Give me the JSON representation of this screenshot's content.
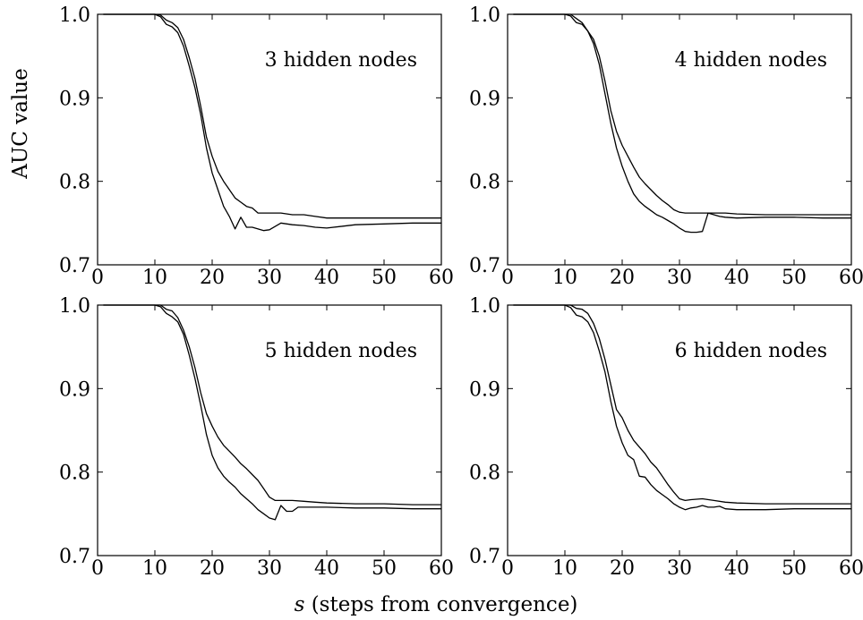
{
  "figure": {
    "ylabel": "AUC value",
    "xlabel_var": "s",
    "xlabel_rest": " (steps from convergence)"
  },
  "chart_data": [
    {
      "type": "line",
      "title": "3 hidden nodes",
      "xlim": [
        0,
        60
      ],
      "ylim": [
        0.7,
        1.0
      ],
      "xticks": [
        0,
        10,
        20,
        30,
        40,
        50,
        60
      ],
      "yticks": [
        0.7,
        0.8,
        0.9,
        1.0
      ],
      "series": [
        {
          "x": [
            1,
            9,
            10,
            11,
            12,
            13,
            14,
            15,
            16,
            17,
            18,
            19,
            20,
            21,
            22,
            23,
            24,
            25,
            26,
            27,
            28,
            29,
            30,
            32,
            34,
            36,
            38,
            40,
            45,
            50,
            55,
            60
          ],
          "y": [
            1.0,
            1.0,
            1.0,
            0.999,
            0.993,
            0.99,
            0.984,
            0.97,
            0.948,
            0.923,
            0.89,
            0.853,
            0.83,
            0.812,
            0.8,
            0.79,
            0.78,
            0.775,
            0.77,
            0.768,
            0.762,
            0.762,
            0.762,
            0.762,
            0.76,
            0.76,
            0.758,
            0.756,
            0.756,
            0.756,
            0.756,
            0.756
          ]
        },
        {
          "x": [
            1,
            9,
            10,
            11,
            12,
            13,
            14,
            15,
            16,
            17,
            18,
            19,
            20,
            21,
            22,
            23,
            24,
            25,
            26,
            27,
            28,
            29,
            30,
            32,
            34,
            36,
            38,
            40,
            45,
            50,
            55,
            60
          ],
          "y": [
            1.0,
            1.0,
            1.0,
            0.997,
            0.988,
            0.985,
            0.978,
            0.962,
            0.938,
            0.912,
            0.88,
            0.84,
            0.81,
            0.79,
            0.77,
            0.758,
            0.743,
            0.757,
            0.745,
            0.745,
            0.743,
            0.741,
            0.742,
            0.75,
            0.748,
            0.747,
            0.745,
            0.744,
            0.748,
            0.749,
            0.75,
            0.75
          ]
        }
      ]
    },
    {
      "type": "line",
      "title": "4 hidden nodes",
      "xlim": [
        0,
        60
      ],
      "ylim": [
        0.7,
        1.0
      ],
      "xticks": [
        0,
        10,
        20,
        30,
        40,
        50,
        60
      ],
      "yticks": [
        0.7,
        0.8,
        0.9,
        1.0
      ],
      "series": [
        {
          "x": [
            1,
            9,
            10,
            11,
            12,
            13,
            14,
            15,
            16,
            17,
            18,
            19,
            20,
            21,
            22,
            23,
            24,
            25,
            26,
            27,
            28,
            29,
            30,
            31,
            32,
            34,
            36,
            38,
            40,
            45,
            50,
            55,
            60
          ],
          "y": [
            1.0,
            1.0,
            1.0,
            1.0,
            0.995,
            0.99,
            0.98,
            0.97,
            0.95,
            0.92,
            0.885,
            0.86,
            0.843,
            0.83,
            0.817,
            0.805,
            0.797,
            0.79,
            0.783,
            0.777,
            0.772,
            0.766,
            0.763,
            0.762,
            0.762,
            0.762,
            0.762,
            0.762,
            0.761,
            0.76,
            0.76,
            0.76,
            0.76
          ]
        },
        {
          "x": [
            1,
            9,
            10,
            11,
            12,
            13,
            14,
            15,
            16,
            17,
            18,
            19,
            20,
            21,
            22,
            23,
            24,
            25,
            26,
            27,
            28,
            29,
            30,
            31,
            32,
            33,
            34,
            35,
            36,
            37,
            38,
            40,
            45,
            50,
            55,
            60
          ],
          "y": [
            1.0,
            1.0,
            1.0,
            0.998,
            0.99,
            0.988,
            0.98,
            0.965,
            0.94,
            0.905,
            0.87,
            0.84,
            0.818,
            0.8,
            0.785,
            0.776,
            0.77,
            0.765,
            0.76,
            0.757,
            0.753,
            0.749,
            0.744,
            0.74,
            0.739,
            0.739,
            0.74,
            0.762,
            0.76,
            0.758,
            0.757,
            0.756,
            0.757,
            0.757,
            0.756,
            0.756
          ]
        }
      ]
    },
    {
      "type": "line",
      "title": "5 hidden nodes",
      "xlim": [
        0,
        60
      ],
      "ylim": [
        0.7,
        1.0
      ],
      "xticks": [
        0,
        10,
        20,
        30,
        40,
        50,
        60
      ],
      "yticks": [
        0.7,
        0.8,
        0.9,
        1.0
      ],
      "series": [
        {
          "x": [
            1,
            9,
            10,
            11,
            12,
            13,
            14,
            15,
            16,
            17,
            18,
            19,
            20,
            21,
            22,
            23,
            24,
            25,
            26,
            27,
            28,
            29,
            30,
            31,
            32,
            34,
            36,
            38,
            40,
            45,
            50,
            55,
            60
          ],
          "y": [
            1.0,
            1.0,
            1.0,
            1.0,
            0.995,
            0.993,
            0.985,
            0.97,
            0.95,
            0.925,
            0.895,
            0.87,
            0.855,
            0.842,
            0.832,
            0.825,
            0.818,
            0.81,
            0.804,
            0.797,
            0.79,
            0.78,
            0.77,
            0.766,
            0.766,
            0.766,
            0.765,
            0.764,
            0.763,
            0.762,
            0.762,
            0.761,
            0.761
          ]
        },
        {
          "x": [
            1,
            9,
            10,
            11,
            12,
            13,
            14,
            15,
            16,
            17,
            18,
            19,
            20,
            21,
            22,
            23,
            24,
            25,
            26,
            27,
            28,
            29,
            30,
            31,
            32,
            33,
            34,
            35,
            36,
            38,
            40,
            45,
            50,
            55,
            60
          ],
          "y": [
            1.0,
            1.0,
            1.0,
            0.998,
            0.99,
            0.986,
            0.98,
            0.965,
            0.94,
            0.912,
            0.88,
            0.845,
            0.82,
            0.805,
            0.795,
            0.788,
            0.782,
            0.774,
            0.768,
            0.762,
            0.755,
            0.75,
            0.745,
            0.743,
            0.76,
            0.753,
            0.753,
            0.758,
            0.758,
            0.758,
            0.758,
            0.757,
            0.757,
            0.756,
            0.756
          ]
        }
      ]
    },
    {
      "type": "line",
      "title": "6 hidden nodes",
      "xlim": [
        0,
        60
      ],
      "ylim": [
        0.7,
        1.0
      ],
      "xticks": [
        0,
        10,
        20,
        30,
        40,
        50,
        60
      ],
      "yticks": [
        0.7,
        0.8,
        0.9,
        1.0
      ],
      "series": [
        {
          "x": [
            1,
            9,
            10,
            11,
            12,
            13,
            14,
            15,
            16,
            17,
            18,
            19,
            20,
            21,
            22,
            23,
            24,
            25,
            26,
            27,
            28,
            29,
            30,
            31,
            32,
            34,
            36,
            38,
            40,
            45,
            50,
            55,
            60
          ],
          "y": [
            1.0,
            1.0,
            1.0,
            1.0,
            0.996,
            0.995,
            0.99,
            0.978,
            0.96,
            0.935,
            0.905,
            0.875,
            0.865,
            0.85,
            0.838,
            0.83,
            0.822,
            0.812,
            0.805,
            0.795,
            0.785,
            0.776,
            0.768,
            0.766,
            0.767,
            0.768,
            0.766,
            0.764,
            0.763,
            0.762,
            0.762,
            0.762,
            0.762
          ]
        },
        {
          "x": [
            1,
            9,
            10,
            11,
            12,
            13,
            14,
            15,
            16,
            17,
            18,
            19,
            20,
            21,
            22,
            23,
            24,
            25,
            26,
            27,
            28,
            29,
            30,
            31,
            32,
            33,
            34,
            35,
            36,
            37,
            38,
            40,
            45,
            50,
            55,
            60
          ],
          "y": [
            1.0,
            1.0,
            1.0,
            0.997,
            0.988,
            0.986,
            0.98,
            0.967,
            0.945,
            0.92,
            0.885,
            0.855,
            0.835,
            0.82,
            0.815,
            0.795,
            0.794,
            0.785,
            0.778,
            0.773,
            0.768,
            0.762,
            0.758,
            0.755,
            0.757,
            0.758,
            0.76,
            0.758,
            0.758,
            0.759,
            0.756,
            0.755,
            0.755,
            0.756,
            0.756,
            0.756
          ]
        }
      ]
    }
  ]
}
